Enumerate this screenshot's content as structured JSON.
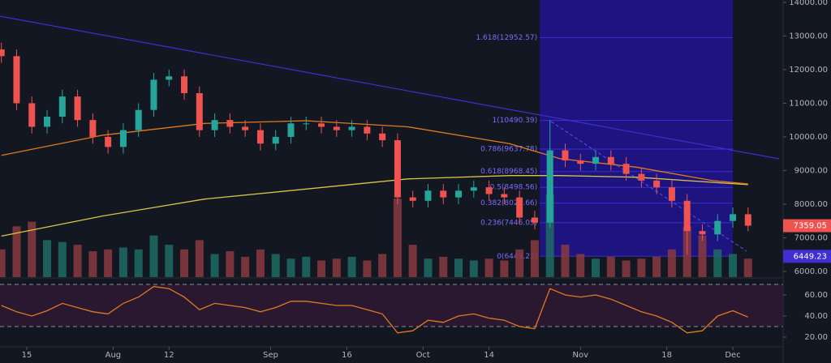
{
  "chart_data": {
    "type": "candlestick",
    "colors": {
      "up": "#26a69a",
      "down": "#ef5350",
      "ma_fast": "#e07a1f",
      "ma_slow": "#d8c44a",
      "rsi": "#e07a1f",
      "fib": "#3d2fd0",
      "fib_fill": "#1e1480"
    },
    "x": [
      -5,
      -2,
      1,
      4,
      7,
      10,
      13,
      16,
      19,
      22,
      25,
      28,
      31,
      34,
      37,
      40,
      43,
      46,
      49,
      52,
      55,
      58,
      61,
      64,
      67,
      70,
      73,
      76,
      79,
      82,
      85,
      88,
      91,
      94,
      97,
      100,
      103,
      106,
      109,
      112,
      115,
      118,
      121,
      124,
      127,
      130,
      133,
      136,
      139,
      142
    ],
    "open": [
      12600,
      12400,
      11000,
      10300,
      10600,
      11200,
      10500,
      10000,
      9700,
      10200,
      10800,
      11700,
      11800,
      11300,
      10200,
      10500,
      10300,
      10200,
      9800,
      10000,
      10400,
      10400,
      10300,
      10200,
      10300,
      10100,
      9900,
      8200,
      8100,
      8400,
      8200,
      8400,
      8500,
      8300,
      8200,
      7600,
      7450,
      9600,
      9300,
      9200,
      9400,
      9200,
      8900,
      8700,
      8500,
      8100,
      7200,
      7100,
      7500,
      7700
    ],
    "high": [
      12800,
      12600,
      11200,
      10800,
      11400,
      11400,
      10700,
      10200,
      10400,
      11000,
      11900,
      12000,
      12000,
      11500,
      10700,
      10700,
      10500,
      10400,
      10200,
      10600,
      10600,
      10600,
      10500,
      10500,
      10500,
      10300,
      10100,
      8400,
      8600,
      8600,
      8600,
      8700,
      8700,
      8500,
      8400,
      7800,
      10500,
      9800,
      9500,
      9600,
      9600,
      9400,
      9100,
      8900,
      8700,
      8300,
      7400,
      7700,
      7900,
      7900
    ],
    "low": [
      12200,
      10800,
      10100,
      10100,
      10400,
      10300,
      9800,
      9500,
      9500,
      10000,
      10600,
      11500,
      11100,
      10000,
      10000,
      10100,
      10000,
      9600,
      9600,
      9800,
      10200,
      10100,
      10000,
      10000,
      9900,
      9700,
      8000,
      7900,
      7900,
      8000,
      8000,
      8200,
      8100,
      8000,
      7400,
      7250,
      7300,
      9100,
      9000,
      9000,
      9000,
      8700,
      8500,
      8300,
      7900,
      6500,
      6900,
      6900,
      7300,
      7200
    ],
    "close": [
      12400,
      11000,
      10300,
      10600,
      11200,
      10500,
      10000,
      9700,
      10200,
      10800,
      11700,
      11800,
      11300,
      10200,
      10500,
      10300,
      10200,
      9800,
      10000,
      10400,
      10400,
      10300,
      10200,
      10300,
      10100,
      9900,
      8200,
      8100,
      8400,
      8200,
      8400,
      8500,
      8300,
      8200,
      7600,
      7450,
      9600,
      9300,
      9200,
      9400,
      9200,
      8900,
      8700,
      8500,
      8100,
      7200,
      7100,
      7500,
      7700,
      7359
    ],
    "volume": [
      30,
      55,
      60,
      40,
      38,
      35,
      28,
      30,
      32,
      30,
      45,
      35,
      30,
      40,
      25,
      28,
      22,
      30,
      25,
      20,
      22,
      18,
      20,
      22,
      18,
      25,
      85,
      35,
      20,
      22,
      20,
      18,
      20,
      18,
      30,
      40,
      90,
      35,
      25,
      20,
      22,
      18,
      20,
      22,
      30,
      55,
      45,
      30,
      25,
      20
    ],
    "volume_lim": [
      0,
      300
    ],
    "ma_fast": {
      "x": [
        -5,
        15,
        35,
        55,
        75,
        95,
        105,
        120,
        135,
        142
      ],
      "values": [
        9450,
        10050,
        10400,
        10480,
        10300,
        9800,
        9350,
        9100,
        8700,
        8600
      ]
    },
    "ma_slow": {
      "x": [
        -5,
        15,
        35,
        55,
        75,
        95,
        105,
        120,
        135,
        142
      ],
      "values": [
        7050,
        7650,
        8150,
        8450,
        8750,
        8850,
        8850,
        8800,
        8650,
        8580
      ]
    },
    "rsi": [
      50,
      44,
      40,
      45,
      52,
      48,
      44,
      42,
      52,
      58,
      68,
      66,
      58,
      46,
      52,
      50,
      48,
      44,
      48,
      54,
      54,
      52,
      50,
      50,
      46,
      42,
      24,
      26,
      36,
      34,
      40,
      42,
      38,
      36,
      30,
      28,
      66,
      60,
      58,
      60,
      56,
      50,
      44,
      40,
      34,
      24,
      26,
      40,
      45,
      39
    ],
    "rsi_ylim": [
      10.8,
      74.6
    ],
    "rsi_yticks": [
      {
        "value": 20,
        "label": "20.00"
      },
      {
        "value": 40,
        "label": "40.00"
      },
      {
        "value": 60,
        "label": "60.00"
      }
    ],
    "rsi_bands": [
      30,
      70
    ],
    "xlim": [
      -5.27,
      148.9
    ],
    "xticks": [
      {
        "value": 0,
        "label": "15"
      },
      {
        "value": 17,
        "label": "Aug"
      },
      {
        "value": 28,
        "label": "12"
      },
      {
        "value": 48,
        "label": "Sep"
      },
      {
        "value": 63,
        "label": "16"
      },
      {
        "value": 78,
        "label": "Oct"
      },
      {
        "value": 91,
        "label": "14"
      },
      {
        "value": 109,
        "label": "Nov"
      },
      {
        "value": 126,
        "label": "18"
      },
      {
        "value": 139,
        "label": "Dec"
      }
    ],
    "ylim": [
      5830,
      14070
    ],
    "yticks": [
      {
        "value": 6000,
        "label": "6000.00"
      },
      {
        "value": 7000,
        "label": "7000.00"
      },
      {
        "value": 8000,
        "label": "8000.00"
      },
      {
        "value": 9000,
        "label": "9000.00"
      },
      {
        "value": 10000,
        "label": "10000.00"
      },
      {
        "value": 11000,
        "label": "11000.00"
      },
      {
        "value": 12000,
        "label": "12000.00"
      },
      {
        "value": 13000,
        "label": "13000.00"
      },
      {
        "value": 14000,
        "label": "14000.00"
      }
    ],
    "fib_x": [
      101,
      139
    ],
    "fib_levels": [
      {
        "value": 12952.57,
        "label": "1.618(12952.57)"
      },
      {
        "value": 10490.39,
        "label": "1(10490.39)"
      },
      {
        "value": 9637.78,
        "label": "0.786(9637.78)"
      },
      {
        "value": 8968.45,
        "label": "0.618(8968.45)"
      },
      {
        "value": 8498.56,
        "label": "0.5(8498.56)"
      },
      {
        "value": 8028.66,
        "label": "0.382(8028.66)"
      },
      {
        "value": 7446.05,
        "label": "0.236(7446.05)"
      },
      {
        "value": 6449.23,
        "label": "0(6449.23)"
      }
    ],
    "price_markers": [
      {
        "value": 7359.05,
        "label": "7359.05",
        "color": "#ef5350"
      },
      {
        "value": 6449.23,
        "label": "6449.23",
        "color": "#3d2fd0"
      }
    ]
  }
}
